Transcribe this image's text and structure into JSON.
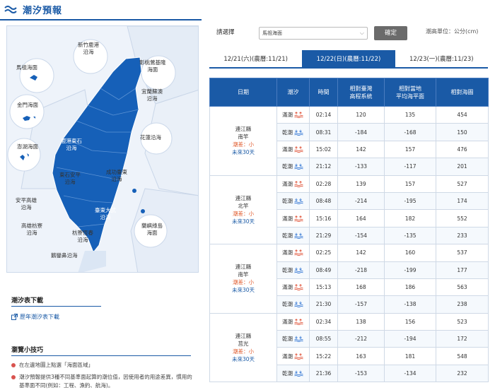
{
  "header": {
    "title": "潮汐預報",
    "icon": "wave-icon"
  },
  "map": {
    "zones": [
      {
        "id": "hsinchu",
        "lines": [
          "新竹鹿港",
          "沿海"
        ]
      },
      {
        "id": "changbei",
        "lines": [
          "彰桃鶯基隆",
          "海面"
        ]
      },
      {
        "id": "matsu",
        "lines": [
          "馬祖海面"
        ]
      },
      {
        "id": "kinmen",
        "lines": [
          "金門海面"
        ]
      },
      {
        "id": "penghu",
        "lines": [
          "澎湖海面"
        ]
      },
      {
        "id": "yilan",
        "lines": [
          "宜蘭蘇澳",
          "沿海"
        ]
      },
      {
        "id": "hualien",
        "lines": [
          "花蓮沿海"
        ]
      },
      {
        "id": "chiayi",
        "lines": [
          "鹿港東石",
          "沿海"
        ]
      },
      {
        "id": "tainan",
        "lines": [
          "東石安平",
          "沿海"
        ]
      },
      {
        "id": "chenggong",
        "lines": [
          "成功臺東",
          "沿海"
        ]
      },
      {
        "id": "anping",
        "lines": [
          "安平高雄",
          "沿海"
        ]
      },
      {
        "id": "taitung",
        "lines": [
          "臺東大武",
          "沿海"
        ]
      },
      {
        "id": "kaohsiung",
        "lines": [
          "高雄枋寮",
          "沿海"
        ]
      },
      {
        "id": "fangliao",
        "lines": [
          "枋寮恆春",
          "沿海"
        ]
      },
      {
        "id": "lanyu",
        "lines": [
          "蘭嶼綠島",
          "海面"
        ]
      },
      {
        "id": "oluanpi",
        "lines": [
          "鵝鑾鼻沿海"
        ]
      }
    ]
  },
  "download": {
    "title": "潮汐表下載",
    "link": "歷年潮汐表下載"
  },
  "tips": {
    "title": "瀏覽小技巧",
    "items": [
      "在左邊地圖上點選「海面區域」",
      "潮汐預報提供3種不同基準面起算的潮位值，因使用者的用途差異，慣用的基準面不同(例如：工程、漁釣、航海)。"
    ]
  },
  "controls": {
    "select_label": "請選擇",
    "select_value": "馬祖海面",
    "confirm": "確定",
    "unit": "潮高單位：公分(cm)"
  },
  "tabs": [
    {
      "label": "12/21(六)(農曆:11/21)",
      "active": false
    },
    {
      "label": "12/22(日)(農曆:11/22)",
      "active": true
    },
    {
      "label": "12/23(一)(農曆:11/23)",
      "active": false
    }
  ],
  "table": {
    "headers": {
      "date": "日期",
      "tide": "潮汐",
      "time": "時間",
      "twvd": [
        "相對臺灣",
        "高程系統"
      ],
      "msl": [
        "相對當地",
        "平均海平面"
      ],
      "chart": "相對海圖"
    },
    "groups": [
      {
        "county": "連江縣",
        "town": "南竿",
        "moon": "潮差：小",
        "trend": "未來30天",
        "rows": [
          {
            "tide": "滿潮",
            "type": "high",
            "time": "02:14",
            "twvd": "120",
            "msl": "135",
            "chart": "454"
          },
          {
            "tide": "乾潮",
            "type": "low",
            "time": "08:31",
            "twvd": "-184",
            "msl": "-168",
            "chart": "150"
          },
          {
            "tide": "滿潮",
            "type": "high",
            "time": "15:02",
            "twvd": "142",
            "msl": "157",
            "chart": "476"
          },
          {
            "tide": "乾潮",
            "type": "low",
            "time": "21:12",
            "twvd": "-133",
            "msl": "-117",
            "chart": "201"
          }
        ]
      },
      {
        "county": "連江縣",
        "town": "北竿",
        "moon": "潮差：小",
        "trend": "未來30天",
        "rows": [
          {
            "tide": "滿潮",
            "type": "high",
            "time": "02:28",
            "twvd": "139",
            "msl": "157",
            "chart": "527"
          },
          {
            "tide": "乾潮",
            "type": "low",
            "time": "08:48",
            "twvd": "-214",
            "msl": "-195",
            "chart": "174"
          },
          {
            "tide": "滿潮",
            "type": "high",
            "time": "15:16",
            "twvd": "164",
            "msl": "182",
            "chart": "552"
          },
          {
            "tide": "乾潮",
            "type": "low",
            "time": "21:29",
            "twvd": "-154",
            "msl": "-135",
            "chart": "233"
          }
        ]
      },
      {
        "county": "連江縣",
        "town": "南竿",
        "moon": "潮差：小",
        "trend": "未來30天",
        "rows": [
          {
            "tide": "滿潮",
            "type": "high",
            "time": "02:25",
            "twvd": "142",
            "msl": "160",
            "chart": "537"
          },
          {
            "tide": "乾潮",
            "type": "low",
            "time": "08:49",
            "twvd": "-218",
            "msl": "-199",
            "chart": "177"
          },
          {
            "tide": "滿潮",
            "type": "high",
            "time": "15:13",
            "twvd": "168",
            "msl": "186",
            "chart": "563"
          },
          {
            "tide": "乾潮",
            "type": "low",
            "time": "21:30",
            "twvd": "-157",
            "msl": "-138",
            "chart": "238"
          }
        ]
      },
      {
        "county": "連江縣",
        "town": "莒光",
        "moon": "潮差：小",
        "trend": "未來30天",
        "rows": [
          {
            "tide": "滿潮",
            "type": "high",
            "time": "02:34",
            "twvd": "138",
            "msl": "156",
            "chart": "523"
          },
          {
            "tide": "乾潮",
            "type": "low",
            "time": "08:55",
            "twvd": "-212",
            "msl": "-194",
            "chart": "172"
          },
          {
            "tide": "滿潮",
            "type": "high",
            "time": "15:22",
            "twvd": "163",
            "msl": "181",
            "chart": "548"
          },
          {
            "tide": "乾潮",
            "type": "low",
            "time": "21:36",
            "twvd": "-153",
            "msl": "-134",
            "chart": "232"
          }
        ]
      }
    ]
  }
}
